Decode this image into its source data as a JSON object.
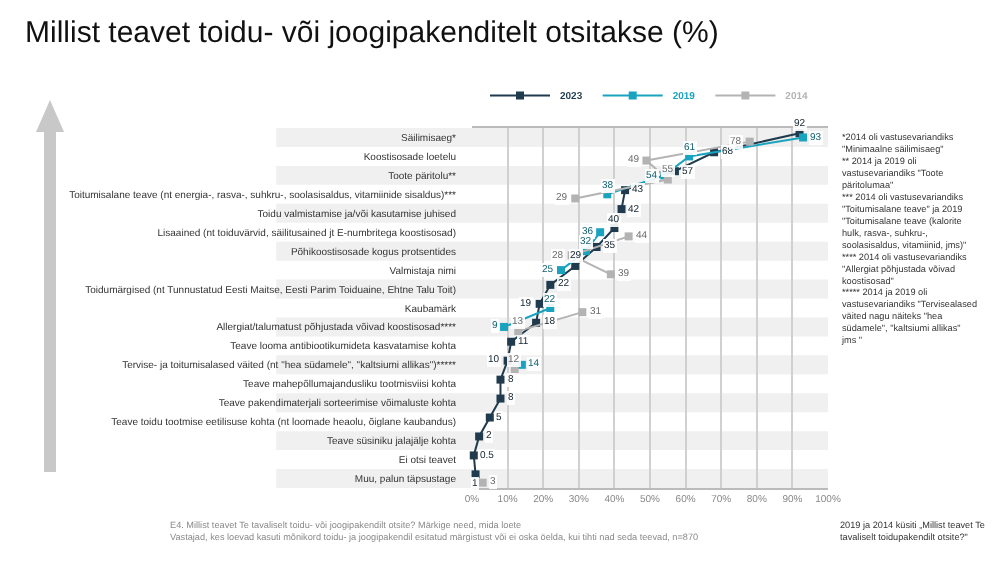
{
  "chart_data": {
    "type": "line",
    "title": "Millist teavet toidu- või joogipakenditelt otsitakse (%)",
    "orientation": "horizontal",
    "categories": [
      "Säilimisaeg*",
      "Koostisosade loetelu",
      "Toote päritolu**",
      "Toitumisalane teave (nt energia-, rasva-, suhkru-, soolasisaldus, vitamiinide sisaldus)***",
      "Toidu valmistamise ja/või kasutamise juhised",
      "Lisaained (nt toiduvärvid, säilitusained jt E-numbritega koostisosad)",
      "Põhikoostisosade kogus protsentides",
      "Valmistaja nimi",
      "Toidumärgised (nt Tunnustatud Eesti Maitse, Eesti Parim Toiduaine, Ehtne Talu Toit)",
      "Kaubamärk",
      "Allergiat/talumatust põhjustada võivad koostisosad****",
      "Teave looma antibiootikumideta kasvatamise kohta",
      "Tervise- ja toitumisalased väited (nt \"hea südamele\", \"kaltsiumi allikas\")*****",
      "Teave mahepõllumajandusliku tootmisviisi kohta",
      "Teave pakendimaterjali sorteerimise võimaluste kohta",
      "Teave toidu tootmise eetilisuse kohta (nt loomade heaolu, õiglane kaubandus)",
      "Teave süsiniku jalajälje kohta",
      "Ei otsi teavet",
      "Muu, palun täpsustage"
    ],
    "series": [
      {
        "name": "2023",
        "color": "#1f3b4d",
        "values": [
          92,
          68,
          57,
          43,
          42,
          40,
          35,
          29,
          22,
          19,
          18,
          11,
          10,
          8,
          8,
          5,
          2,
          0.5,
          1
        ]
      },
      {
        "name": "2019",
        "color": "#1aa3bf",
        "values": [
          93,
          61,
          54,
          38,
          null,
          36,
          32,
          25,
          null,
          22,
          9,
          null,
          14,
          null,
          null,
          null,
          null,
          null,
          null
        ]
      },
      {
        "name": "2014",
        "color": "#b3b3b3",
        "values": [
          78,
          49,
          55,
          29,
          null,
          44,
          28,
          39,
          null,
          31,
          13,
          null,
          12,
          null,
          null,
          null,
          null,
          null,
          3
        ]
      }
    ],
    "xlim": [
      0,
      100
    ],
    "xticks": [
      {
        "value": 0,
        "label": "0%"
      },
      {
        "value": 10,
        "label": "10%"
      },
      {
        "value": 20,
        "label": "20%"
      },
      {
        "value": 30,
        "label": "30%"
      },
      {
        "value": 40,
        "label": "40%"
      },
      {
        "value": 50,
        "label": "50%"
      },
      {
        "value": 60,
        "label": "60%"
      },
      {
        "value": 70,
        "label": "70%"
      },
      {
        "value": 80,
        "label": "80%"
      },
      {
        "value": 90,
        "label": "90%"
      },
      {
        "value": 100,
        "label": "100%"
      }
    ],
    "grid": "x",
    "legend": "top",
    "marker": "square",
    "data_labels": true,
    "annotations": [
      "*2014 oli vastusevariandiks \"Minimaalne säilimisaeg\"\n** 2014 ja 2019 oli vastusevariandiks \"Toote päritolumaa\"\n*** 2014 oli vastusevariandiks \"Toitumisalane teave\" ja 2019 \"Toitumisalane teave (kalorite hulk, rasva-, suhkru-, soolasisaldus, vitamiinid, jms)\"\n**** 2014 oli vastusevariandiks \"Allergiat põhjustada võivad koostisosad\"\n***** 2014 ja 2019 oli vastusevariandiks \"Tervisealased väited nagu näiteks \"hea südamele\", \"kaltsiumi allikas\" jms \"",
      "E4. Millist teavet Te tavaliselt toidu- või joogipakendilt otsite? Märkige need, mida loete\nVastajad, kes loevad kasuti mõnikord toidu- ja joogipakendil esitatud märgistust või ei oska öelda, kui tihti nad seda teevad, n=870",
      "2019 ja 2014 küsiti „Millist teavet Te tavaliselt toidupakendilt otsite?\""
    ]
  }
}
